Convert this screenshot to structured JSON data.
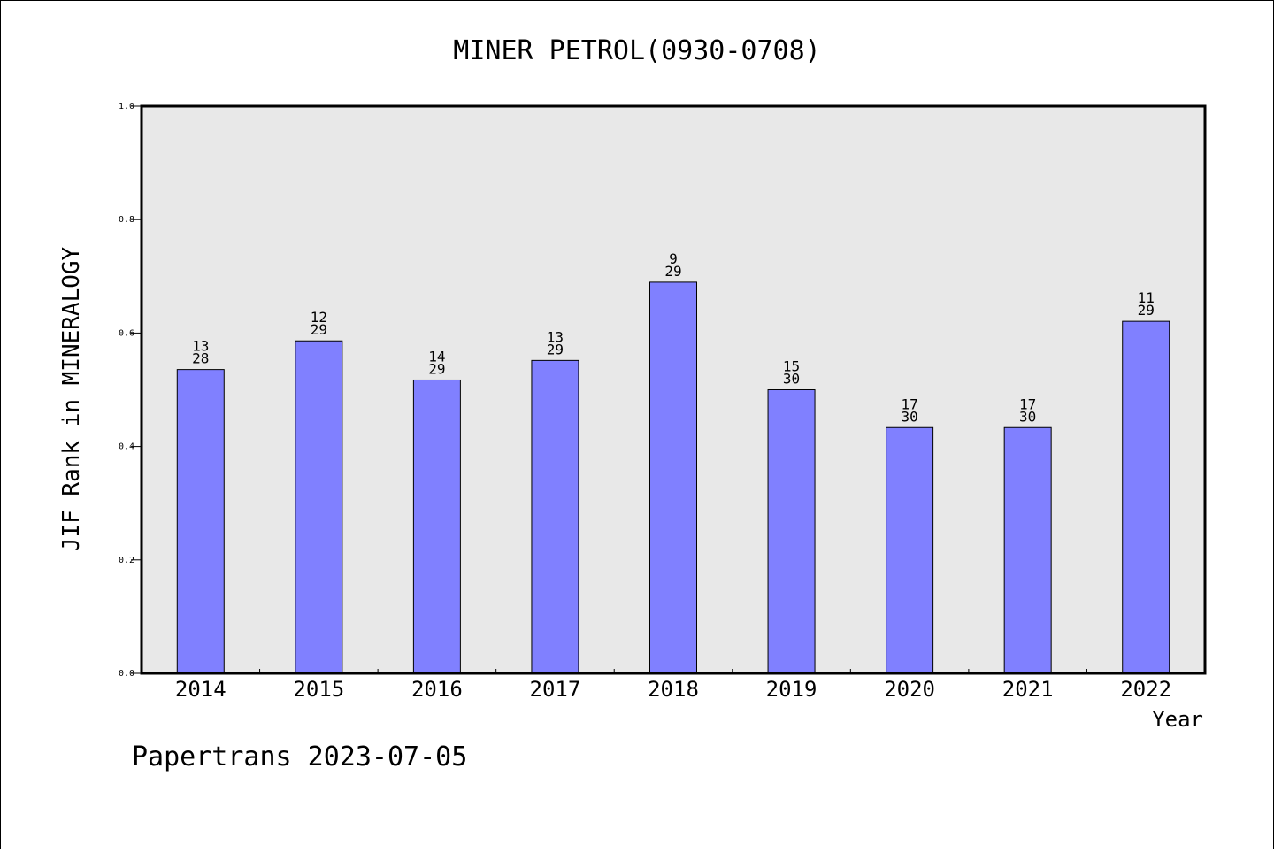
{
  "chart_data": {
    "type": "bar",
    "title": "MINER PETROL(0930-0708)",
    "xlabel": "Year",
    "ylabel": "JIF Rank in MINERALOGY",
    "categories": [
      "2014",
      "2015",
      "2016",
      "2017",
      "2018",
      "2019",
      "2020",
      "2021",
      "2022"
    ],
    "values": [
      0.5357,
      0.5862,
      0.5172,
      0.5517,
      0.6897,
      0.5,
      0.4333,
      0.4333,
      0.6207
    ],
    "rank": [
      "13",
      "12",
      "14",
      "13",
      "9",
      "15",
      "17",
      "17",
      "11"
    ],
    "total": [
      "28",
      "29",
      "29",
      "29",
      "29",
      "30",
      "30",
      "30",
      "29"
    ],
    "ylim": [
      0,
      1.0
    ],
    "yticks": [
      "0.0",
      "0.2",
      "0.4",
      "0.6",
      "0.8",
      "1.0"
    ],
    "grid": false,
    "bar_color": "#8080ff",
    "plot_background": "#e8e8e8"
  },
  "footer": "Papertrans 2023-07-05"
}
